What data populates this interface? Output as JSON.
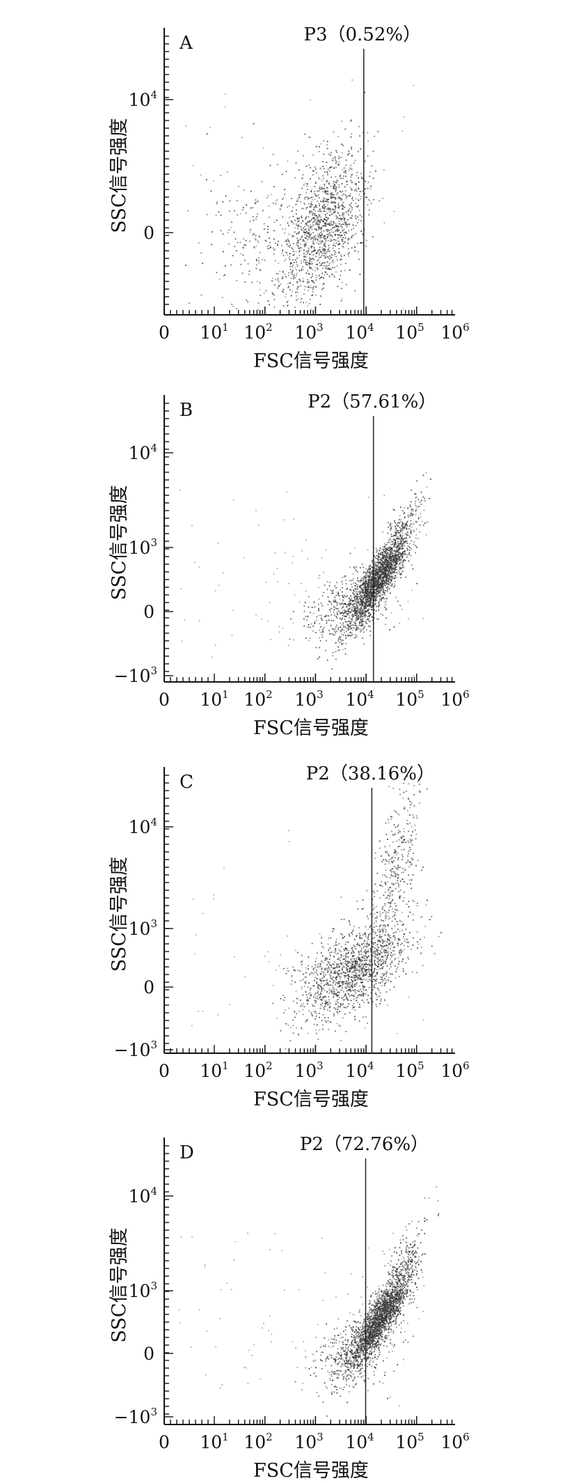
{
  "colors": {
    "ink": "#111111",
    "dot": "#3a3a3a"
  },
  "chart_data": [
    {
      "type": "scatter",
      "panel": "A",
      "gate_label": "P3（0.52%）",
      "gate_x": 9000,
      "xlabel": "FSC信号强度",
      "ylabel": "SSC信号强度",
      "x_ticks": [
        {
          "base": "0",
          "exp": ""
        },
        {
          "base": "10",
          "exp": "1"
        },
        {
          "base": "10",
          "exp": "2"
        },
        {
          "base": "10",
          "exp": "3"
        },
        {
          "base": "10",
          "exp": "4"
        },
        {
          "base": "10",
          "exp": "5"
        },
        {
          "base": "10",
          "exp": "6"
        }
      ],
      "y_ticks": [
        {
          "base": "10",
          "exp": "4",
          "value": 10000
        },
        {
          "base": "0",
          "exp": "",
          "value": 0
        }
      ],
      "n_points": 1500,
      "clusters": [
        {
          "x_log_mean": 3.15,
          "x_log_sd": 0.42,
          "y_mean": 0.05,
          "y_sd": 0.28,
          "w": 0.85,
          "corr": 0.45
        },
        {
          "x_log_mean": 1.9,
          "x_log_sd": 0.6,
          "y_mean": -0.05,
          "y_sd": 0.3,
          "w": 0.15,
          "corr": 0.0
        }
      ]
    },
    {
      "type": "scatter",
      "panel": "B",
      "gate_label": "P2（57.61%）",
      "gate_x": 14000,
      "xlabel": "FSC信号强度",
      "ylabel": "SSC信号强度",
      "x_ticks": [
        {
          "base": "0",
          "exp": ""
        },
        {
          "base": "10",
          "exp": "1"
        },
        {
          "base": "10",
          "exp": "2"
        },
        {
          "base": "10",
          "exp": "3"
        },
        {
          "base": "10",
          "exp": "4"
        },
        {
          "base": "10",
          "exp": "5"
        },
        {
          "base": "10",
          "exp": "6"
        }
      ],
      "y_ticks": [
        {
          "base": "10",
          "exp": "4",
          "value": 10000
        },
        {
          "base": "10",
          "exp": "3",
          "value": 1000
        },
        {
          "base": "0",
          "exp": "",
          "value": 0
        },
        {
          "base": "−10",
          "exp": "3",
          "value": -1000
        }
      ],
      "n_points": 2600,
      "clusters": [
        {
          "x_log_mean": 4.25,
          "x_log_sd": 0.34,
          "y_mean": 0.55,
          "y_sd": 0.4,
          "w": 0.85,
          "corr": 0.88
        },
        {
          "x_log_mean": 3.6,
          "x_log_sd": 0.45,
          "y_mean": 0.05,
          "y_sd": 0.3,
          "w": 0.15,
          "corr": 0.3
        }
      ]
    },
    {
      "type": "scatter",
      "panel": "C",
      "gate_label": "P2（38.16%）",
      "gate_x": 13000,
      "xlabel": "FSC信号强度",
      "ylabel": "SSC信号强度",
      "x_ticks": [
        {
          "base": "0",
          "exp": ""
        },
        {
          "base": "10",
          "exp": "1"
        },
        {
          "base": "10",
          "exp": "2"
        },
        {
          "base": "10",
          "exp": "3"
        },
        {
          "base": "10",
          "exp": "4"
        },
        {
          "base": "10",
          "exp": "5"
        },
        {
          "base": "10",
          "exp": "6"
        }
      ],
      "y_ticks": [
        {
          "base": "10",
          "exp": "4",
          "value": 10000
        },
        {
          "base": "10",
          "exp": "3",
          "value": 1000
        },
        {
          "base": "0",
          "exp": "",
          "value": 0
        },
        {
          "base": "−10",
          "exp": "3",
          "value": -1000
        }
      ],
      "n_points": 1800,
      "clusters": [
        {
          "x_log_mean": 3.75,
          "x_log_sd": 0.55,
          "y_mean": 0.3,
          "y_sd": 0.42,
          "w": 0.8,
          "corr": 0.55
        },
        {
          "x_log_mean": 4.6,
          "x_log_sd": 0.25,
          "y_mean": 1.6,
          "y_sd": 0.5,
          "w": 0.2,
          "corr": 0.7
        }
      ]
    },
    {
      "type": "scatter",
      "panel": "D",
      "gate_label": "P2（72.76%）",
      "gate_x": 9800,
      "xlabel": "FSC信号强度",
      "ylabel": "SSC信号强度",
      "x_ticks": [
        {
          "base": "0",
          "exp": ""
        },
        {
          "base": "10",
          "exp": "1"
        },
        {
          "base": "10",
          "exp": "2"
        },
        {
          "base": "10",
          "exp": "3"
        },
        {
          "base": "10",
          "exp": "4"
        },
        {
          "base": "10",
          "exp": "5"
        },
        {
          "base": "10",
          "exp": "6"
        }
      ],
      "y_ticks": [
        {
          "base": "10",
          "exp": "4",
          "value": 10000
        },
        {
          "base": "10",
          "exp": "3",
          "value": 1000
        },
        {
          "base": "0",
          "exp": "",
          "value": 0
        },
        {
          "base": "−10",
          "exp": "3",
          "value": -1000
        }
      ],
      "n_points": 2600,
      "clusters": [
        {
          "x_log_mean": 4.3,
          "x_log_sd": 0.33,
          "y_mean": 0.6,
          "y_sd": 0.42,
          "w": 0.85,
          "corr": 0.88
        },
        {
          "x_log_mean": 3.7,
          "x_log_sd": 0.4,
          "y_mean": 0.0,
          "y_sd": 0.28,
          "w": 0.15,
          "corr": 0.3
        }
      ]
    }
  ]
}
